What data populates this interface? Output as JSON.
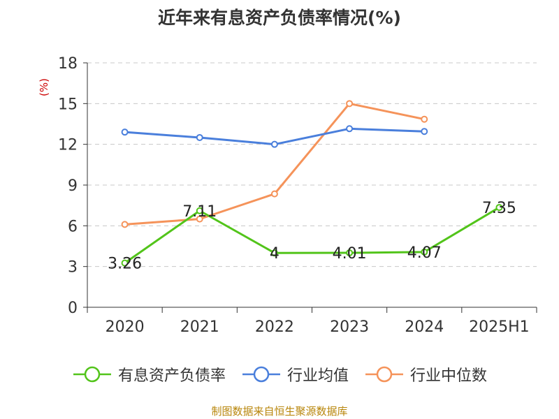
{
  "chart_data": {
    "type": "line",
    "title": "近年来有息资产负债率情况(%)",
    "ylabel": "(%)",
    "categories": [
      "2020",
      "2021",
      "2022",
      "2023",
      "2024",
      "2025H1"
    ],
    "ylim": [
      0,
      18
    ],
    "yticks": [
      0,
      3,
      6,
      9,
      12,
      15,
      18
    ],
    "grid": true,
    "legend_position": "bottom",
    "series": [
      {
        "name": "有息资产负债率",
        "color": "#52c41a",
        "values": [
          3.26,
          7.11,
          4,
          4.01,
          4.07,
          7.35
        ],
        "labels": [
          "3.26",
          "7.11",
          "4",
          "4.01",
          "4.07",
          "7.35"
        ]
      },
      {
        "name": "行业均值",
        "color": "#4a7fdc",
        "values": [
          12.9,
          12.5,
          12.0,
          13.15,
          12.95,
          null
        ]
      },
      {
        "name": "行业中位数",
        "color": "#f5935a",
        "values": [
          6.1,
          6.5,
          8.35,
          15.0,
          13.85,
          null
        ]
      }
    ],
    "source": "制图数据来自恒生聚源数据库"
  }
}
